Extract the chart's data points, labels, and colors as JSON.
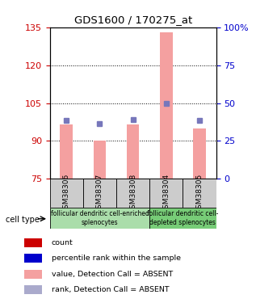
{
  "title": "GDS1600 / 170275_at",
  "samples": [
    "GSM38306",
    "GSM38307",
    "GSM38308",
    "GSM38304",
    "GSM38305"
  ],
  "bar_values": [
    96.5,
    90.0,
    96.5,
    133.0,
    95.0
  ],
  "rank_values": [
    98.0,
    97.0,
    98.5,
    105.0,
    98.0
  ],
  "bar_bottom": 75,
  "ylim_left": [
    75,
    135
  ],
  "ylim_right": [
    0,
    100
  ],
  "yticks_left": [
    75,
    90,
    105,
    120,
    135
  ],
  "yticks_right": [
    0,
    25,
    50,
    75,
    100
  ],
  "ytick_labels_right": [
    "0",
    "25",
    "50",
    "75",
    "100%"
  ],
  "bar_color": "#f4a0a0",
  "rank_marker_color": "#7777bb",
  "left_axis_color": "#cc0000",
  "right_axis_color": "#0000cc",
  "xlabel_area_color": "#cccccc",
  "group0_color": "#aaddaa",
  "group1_color": "#77cc77",
  "group0_label": "follicular dendritic cell-enriched\nsplenocytes",
  "group1_label": "follicular dendritic cell-\ndepleted splenocytes",
  "legend_labels": [
    "count",
    "percentile rank within the sample",
    "value, Detection Call = ABSENT",
    "rank, Detection Call = ABSENT"
  ],
  "legend_colors": [
    "#cc0000",
    "#0000cc",
    "#f4a0a0",
    "#aaaacc"
  ]
}
